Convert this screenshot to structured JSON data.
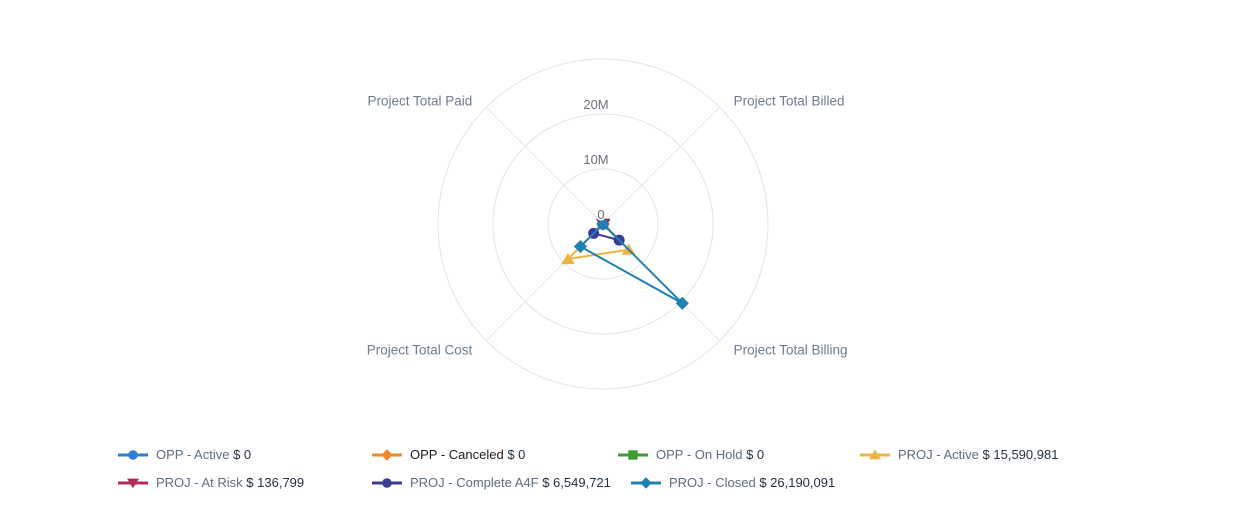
{
  "chart_data": {
    "type": "radar",
    "title": "",
    "legend_position": "bottom",
    "grid": true,
    "categories": [
      "Project Total Billed",
      "Project Total Paid",
      "Project Total Cost",
      "Project Total Billing"
    ],
    "radial_ticks": [
      {
        "label": "0",
        "value": 0
      },
      {
        "label": "10M",
        "value": 10000000
      },
      {
        "label": "20M",
        "value": 20000000
      }
    ],
    "rmax": 30000000,
    "grid_color": "#e2e4e9",
    "axis_label_color": "#6b7d8f",
    "tick_label_color": "#6e7079",
    "series": [
      {
        "name": "OPP - Active",
        "display_total": "$ 0",
        "color": "#2e7dd6",
        "marker": "circle",
        "legend_label_color": "#5d6d7d",
        "values": [
          0,
          0,
          0,
          0
        ]
      },
      {
        "name": "OPP - Canceled",
        "display_total": "$ 0",
        "color": "#f08929",
        "marker": "diamond",
        "legend_label_color": "#1e1e1e",
        "values": [
          0,
          0,
          0,
          0
        ]
      },
      {
        "name": "OPP - On Hold",
        "display_total": "$ 0",
        "color": "#3d9c35",
        "marker": "square",
        "legend_label_color": "#5d6d7d",
        "values": [
          0,
          0,
          0,
          0
        ]
      },
      {
        "name": "PROJ - Active",
        "display_total": "$ 15,590,981",
        "color": "#eeb440",
        "marker": "triangle-up",
        "legend_label_color": "#5d6d7d",
        "values": [
          0,
          0,
          9000000,
          6590981
        ]
      },
      {
        "name": "PROJ - At Risk",
        "display_total": "$ 136,799",
        "color": "#b12d5c",
        "marker": "triangle-down",
        "legend_label_color": "#5d6d7d",
        "values": [
          0,
          0,
          0,
          136799
        ]
      },
      {
        "name": "PROJ - Complete A4F",
        "display_total": "$ 6,549,721",
        "color": "#3b3b94",
        "marker": "circle",
        "legend_label_color": "#5d6d7d",
        "values": [
          0,
          0,
          2400000,
          4149721
        ]
      },
      {
        "name": "PROJ - Closed",
        "display_total": "$ 26,190,091",
        "color": "#2080b4",
        "marker": "diamond",
        "legend_label_color": "#5d6d7d",
        "values": [
          0,
          0,
          5800000,
          20390091
        ]
      }
    ]
  }
}
